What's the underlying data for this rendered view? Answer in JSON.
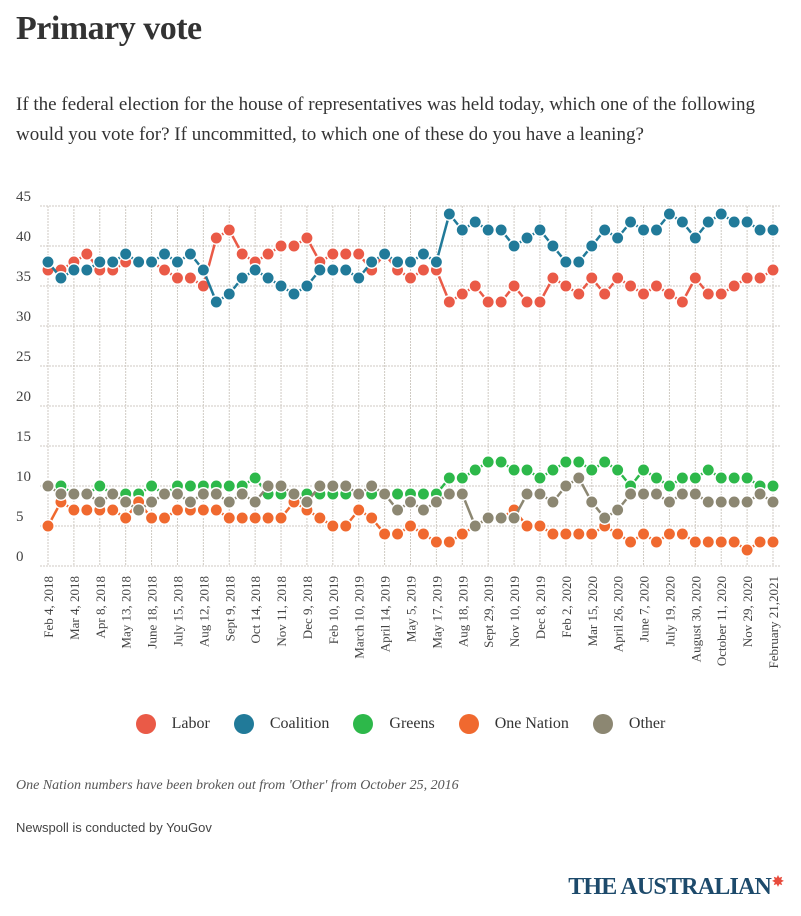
{
  "title": "Primary vote",
  "subtitle": "If the federal election for the house of representatives was held today, which one of the following would you vote for? If uncommitted, to which one of these do you have a leaning?",
  "note": "One Nation numbers have been broken out from 'Other' from October 25, 2016",
  "source": "Newspoll is conducted by YouGov",
  "logo": {
    "text": "THE AUSTRALIAN",
    "icon": "star-icon"
  },
  "chart_data": {
    "type": "line",
    "title": "Primary vote",
    "xlabel": "",
    "ylabel": "",
    "ylim": [
      0,
      45
    ],
    "yticks": [
      0,
      5,
      10,
      15,
      20,
      25,
      30,
      35,
      40,
      45
    ],
    "grid": true,
    "legend_position": "bottom",
    "x_tick_labels": [
      "Feb 4, 2018",
      "Mar 4, 2018",
      "Apr 8, 2018",
      "May 13, 2018",
      "June 18, 2018",
      "July 15, 2018",
      "Aug 12, 2018",
      "Sept 9, 2018",
      "Oct 14, 2018",
      "Nov 11, 2018",
      "Dec 9, 2018",
      "Feb 10, 2019",
      "March 10, 2019",
      "April 14, 2019",
      "May 5, 2019",
      "May 17, 2019",
      "Aug 18, 2019",
      "Sept 29, 2019",
      "Nov 10, 2019",
      "Dec 8, 2019",
      "Feb 2, 2020",
      "Mar 15, 2020",
      "April 26, 2020",
      "June 7, 2020",
      "July 19, 2020",
      "August 30, 2020",
      "October 11, 2020",
      "Nov 29, 2020",
      "February 21,2021"
    ],
    "x_tick_every": 2,
    "n_points": 57,
    "series": [
      {
        "name": "Labor",
        "color": "#ea5a47",
        "values": [
          37,
          37,
          38,
          39,
          37,
          37,
          38,
          38,
          38,
          37,
          36,
          36,
          35,
          41,
          42,
          39,
          38,
          39,
          40,
          40,
          41,
          38,
          39,
          39,
          39,
          37,
          39,
          37,
          36,
          37,
          37,
          33,
          34,
          35,
          33,
          33,
          35,
          33,
          33,
          36,
          35,
          34,
          36,
          34,
          36,
          35,
          34,
          35,
          34,
          33,
          36,
          34,
          34,
          35,
          36,
          36,
          37
        ]
      },
      {
        "name": "Coalition",
        "color": "#217a99",
        "values": [
          38,
          36,
          37,
          37,
          38,
          38,
          39,
          38,
          38,
          39,
          38,
          39,
          37,
          33,
          34,
          36,
          37,
          36,
          35,
          34,
          35,
          37,
          37,
          37,
          36,
          38,
          39,
          38,
          38,
          39,
          38,
          44,
          42,
          43,
          42,
          42,
          40,
          41,
          42,
          40,
          38,
          38,
          40,
          42,
          41,
          43,
          42,
          42,
          44,
          43,
          41,
          43,
          44,
          43,
          43,
          42,
          42
        ]
      },
      {
        "name": "Greens",
        "color": "#2db84a",
        "values": [
          10,
          10,
          9,
          9,
          10,
          9,
          9,
          9,
          10,
          9,
          10,
          10,
          10,
          10,
          10,
          10,
          11,
          9,
          9,
          9,
          9,
          9,
          9,
          9,
          9,
          9,
          9,
          9,
          9,
          9,
          9,
          11,
          11,
          12,
          13,
          13,
          12,
          12,
          11,
          12,
          13,
          13,
          12,
          13,
          12,
          10,
          12,
          11,
          10,
          11,
          11,
          12,
          11,
          11,
          11,
          10,
          10
        ]
      },
      {
        "name": "One Nation",
        "color": "#f0692f",
        "values": [
          5,
          8,
          7,
          7,
          7,
          7,
          6,
          8,
          6,
          6,
          7,
          7,
          7,
          7,
          6,
          6,
          6,
          6,
          6,
          8,
          7,
          6,
          5,
          5,
          7,
          6,
          4,
          4,
          5,
          4,
          3,
          3,
          4,
          5,
          6,
          6,
          7,
          5,
          5,
          4,
          4,
          4,
          4,
          5,
          4,
          3,
          4,
          3,
          4,
          4,
          3,
          3,
          3,
          3,
          2,
          3,
          3
        ]
      },
      {
        "name": "Other",
        "color": "#8c8772",
        "values": [
          10,
          9,
          9,
          9,
          8,
          9,
          8,
          7,
          8,
          9,
          9,
          8,
          9,
          9,
          8,
          9,
          8,
          10,
          10,
          9,
          8,
          10,
          10,
          10,
          9,
          10,
          9,
          7,
          8,
          7,
          8,
          9,
          9,
          5,
          6,
          6,
          6,
          9,
          9,
          8,
          10,
          11,
          8,
          6,
          7,
          9,
          9,
          9,
          8,
          9,
          9,
          8,
          8,
          8,
          8,
          9,
          8
        ]
      }
    ]
  }
}
